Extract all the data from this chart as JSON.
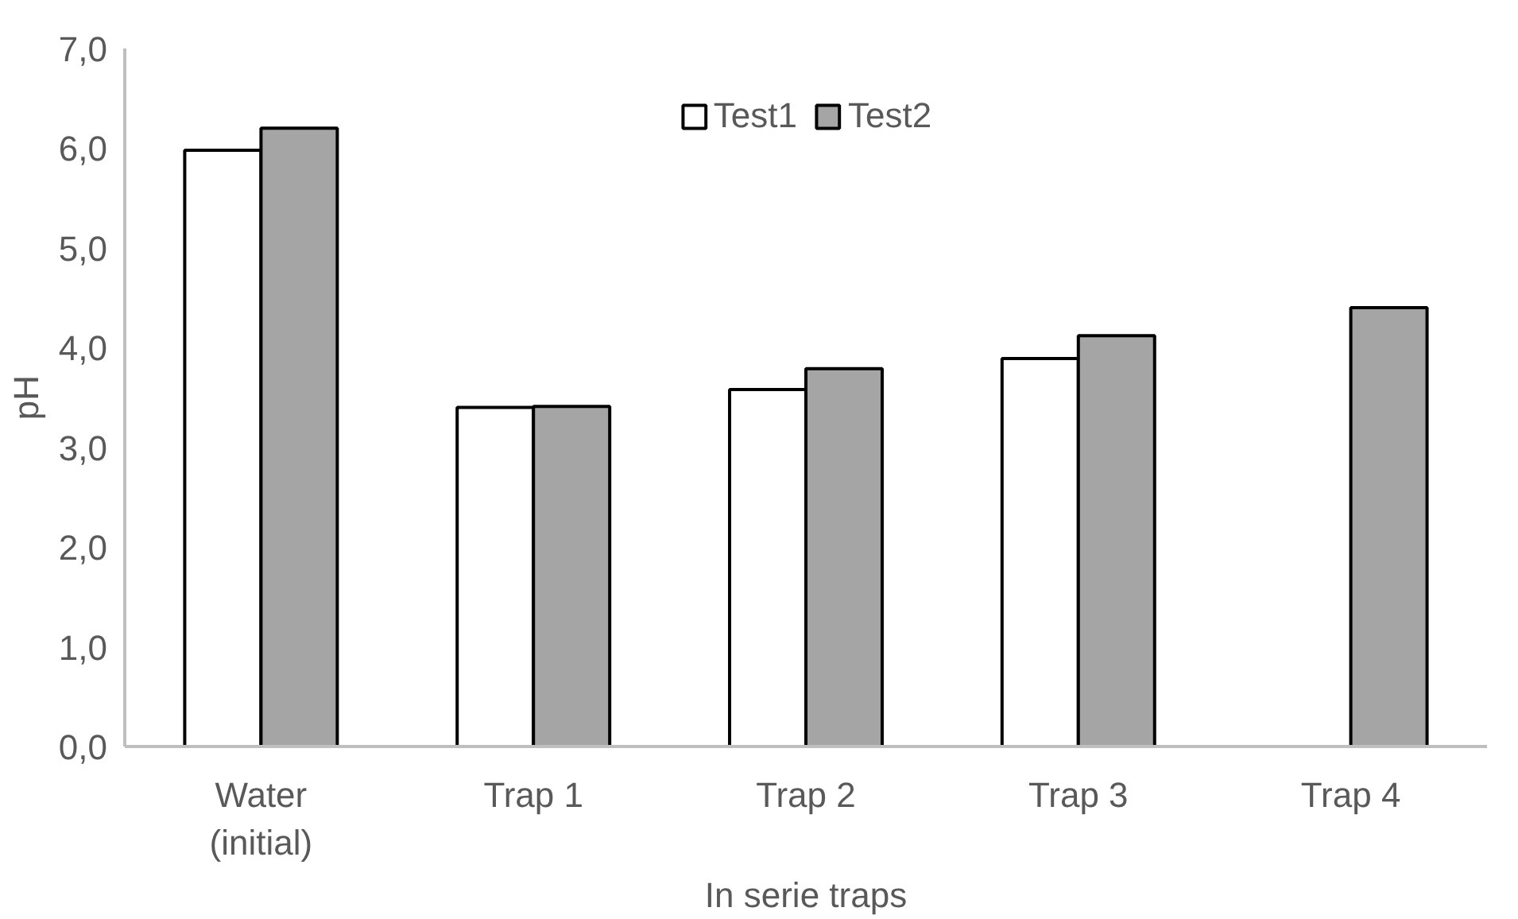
{
  "chart_data": {
    "type": "bar",
    "xlabel": "In serie traps",
    "ylabel": "pH",
    "categories": [
      "Water\n(initial)",
      "Trap 1",
      "Trap 2",
      "Trap 3",
      "Trap 4"
    ],
    "series": [
      {
        "name": "Test1",
        "color": "#ffffff",
        "values": [
          5.98,
          3.4,
          3.58,
          3.89,
          null
        ]
      },
      {
        "name": "Test2",
        "color": "#a5a5a5",
        "values": [
          6.2,
          3.41,
          3.79,
          4.12,
          4.4
        ]
      }
    ],
    "ylim": [
      0,
      7
    ],
    "yticks": [
      {
        "value": 0,
        "label": "0,0"
      },
      {
        "value": 1,
        "label": "1,0"
      },
      {
        "value": 2,
        "label": "2,0"
      },
      {
        "value": 3,
        "label": "3,0"
      },
      {
        "value": 4,
        "label": "4,0"
      },
      {
        "value": 5,
        "label": "5,0"
      },
      {
        "value": 6,
        "label": "6,0"
      },
      {
        "value": 7,
        "label": "7,0"
      }
    ],
    "grid": false,
    "legend": "top"
  }
}
